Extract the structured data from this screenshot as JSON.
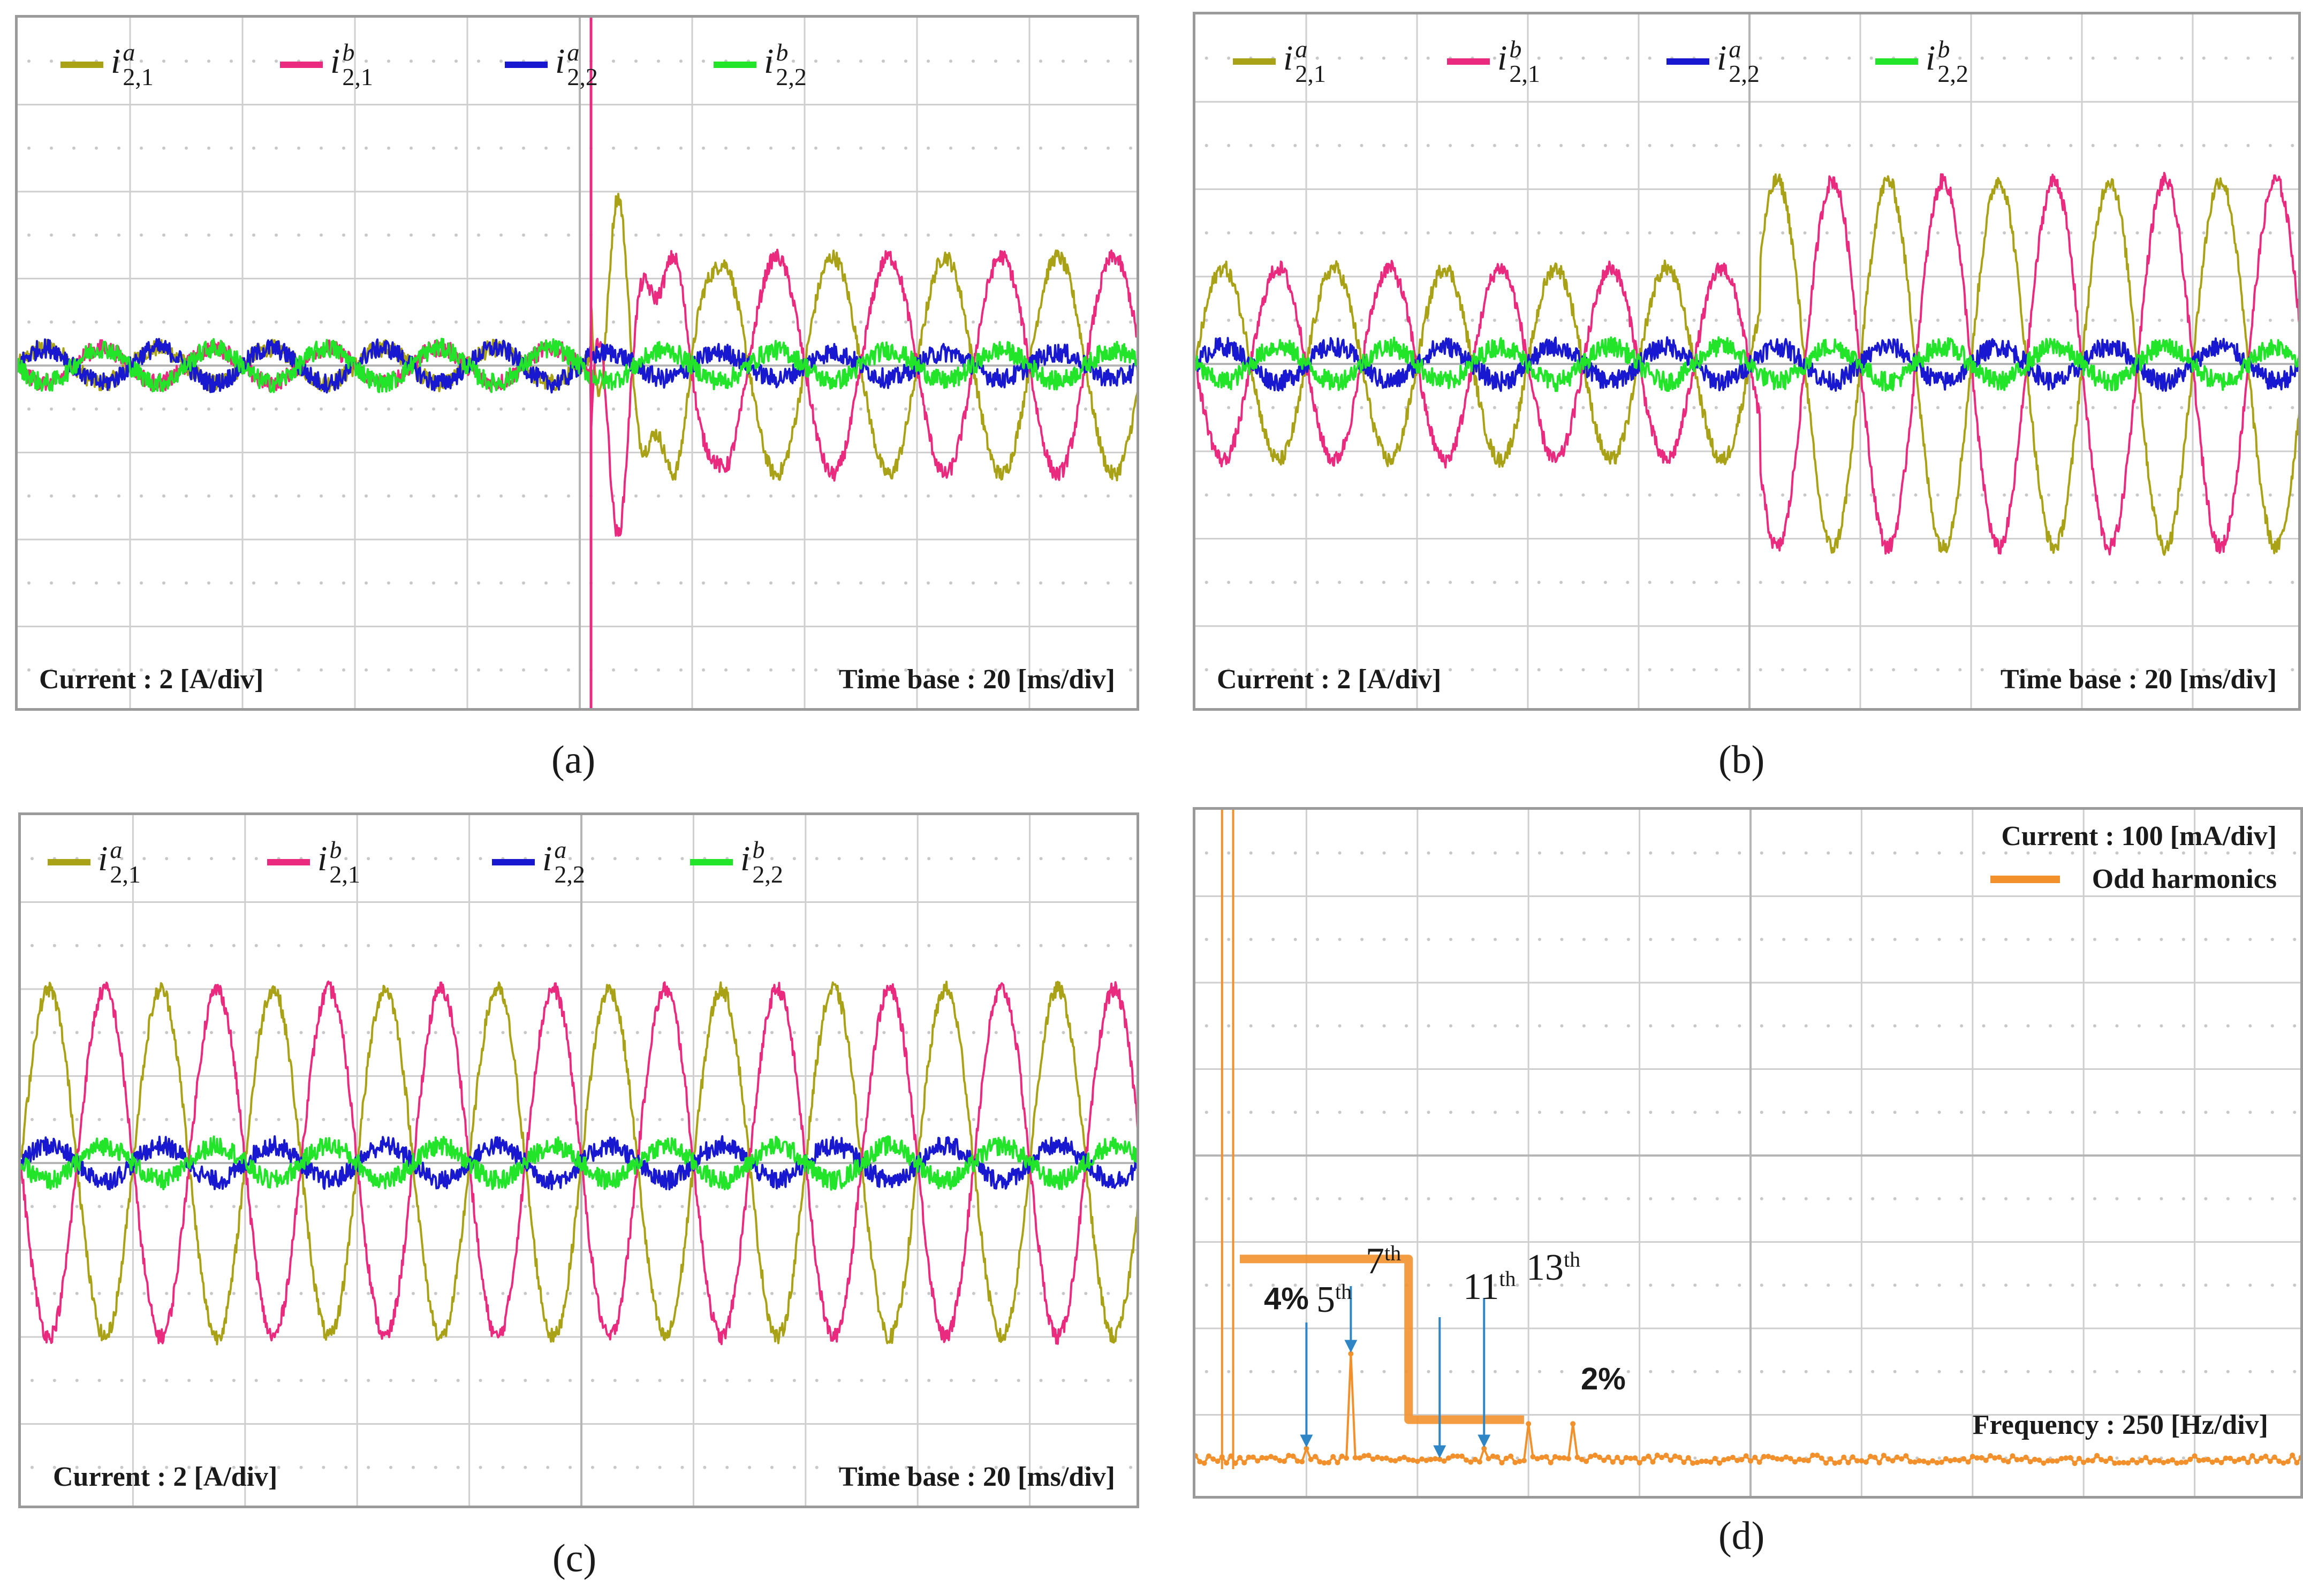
{
  "colors": {
    "i21a": "#aaa216",
    "i21b": "#ea2a7e",
    "i22a": "#1818d0",
    "i22b": "#22e52a",
    "harmonic": "#f2912c",
    "annotation_arrow": "#2e86c6",
    "grid": "#cfcfcf"
  },
  "legend": [
    {
      "key": "i21a",
      "base": "i",
      "sub": "2,1",
      "sup": "a"
    },
    {
      "key": "i21b",
      "base": "i",
      "sub": "2,1",
      "sup": "b"
    },
    {
      "key": "i22a",
      "base": "i",
      "sub": "2,2",
      "sup": "a"
    },
    {
      "key": "i22b",
      "base": "i",
      "sub": "2,2",
      "sup": "b"
    }
  ],
  "panels": {
    "a": {
      "caption": "(a)",
      "scale_y": "Current : 2 [A/div]",
      "scale_x": "Time base : 20 [ms/div]"
    },
    "b": {
      "caption": "(b)",
      "scale_y": "Current : 2 [A/div]",
      "scale_x": "Time base : 20 [ms/div]"
    },
    "c": {
      "caption": "(c)",
      "scale_y": "Current : 2 [A/div]",
      "scale_x": "Time base : 20 [ms/div]"
    },
    "d": {
      "caption": "(d)",
      "scale_y": "Current : 100 [mA/div]",
      "scale_x": "Frequency : 250 [Hz/div]",
      "legend_label": "Odd harmonics"
    }
  },
  "chart_data": [
    {
      "id": "a",
      "type": "line",
      "x_unit": "ms",
      "x_per_div": 20,
      "x_divs": 10,
      "y_unit": "A",
      "y_per_div": 2,
      "y_divs": 8,
      "ylim": [
        -8,
        8
      ],
      "event_time_ms": 102,
      "series": [
        {
          "name": "i2,1^a",
          "key": "i21a",
          "amp_before": 0.4,
          "amp_after": 2.5,
          "phase": 0
        },
        {
          "name": "i2,1^b",
          "key": "i21b",
          "amp_before": 0.4,
          "amp_after": 2.5,
          "phase": 180
        },
        {
          "name": "i2,2^a",
          "key": "i22a",
          "amp_before": 0.4,
          "amp_after": 0.3,
          "phase": 0
        },
        {
          "name": "i2,2^b",
          "key": "i22b",
          "amp_before": 0.4,
          "amp_after": 0.35,
          "phase": 180
        }
      ]
    },
    {
      "id": "b",
      "type": "line",
      "x_unit": "ms",
      "x_per_div": 20,
      "x_divs": 10,
      "y_unit": "A",
      "y_per_div": 2,
      "y_divs": 8,
      "ylim": [
        -8,
        8
      ],
      "event_time_ms": 102,
      "series": [
        {
          "name": "i2,1^a",
          "key": "i21a",
          "amp_before": 2.2,
          "amp_after": 4.2,
          "phase": 0
        },
        {
          "name": "i2,1^b",
          "key": "i21b",
          "amp_before": 2.2,
          "amp_after": 4.2,
          "phase": 180
        },
        {
          "name": "i2,2^a",
          "key": "i22a",
          "amp_before": 0.4,
          "amp_after": 0.4,
          "phase": 0
        },
        {
          "name": "i2,2^b",
          "key": "i22b",
          "amp_before": 0.4,
          "amp_after": 0.4,
          "phase": 180
        }
      ]
    },
    {
      "id": "c",
      "type": "line",
      "x_unit": "ms",
      "x_per_div": 20,
      "x_divs": 10,
      "y_unit": "A",
      "y_per_div": 2,
      "y_divs": 8,
      "ylim": [
        -8,
        8
      ],
      "event_time_ms": null,
      "series": [
        {
          "name": "i2,1^a",
          "key": "i21a",
          "amp_before": 4.0,
          "amp_after": 4.0,
          "phase": 0
        },
        {
          "name": "i2,1^b",
          "key": "i21b",
          "amp_before": 4.0,
          "amp_after": 4.0,
          "phase": 180
        },
        {
          "name": "i2,2^a",
          "key": "i22a",
          "amp_before": 0.4,
          "amp_after": 0.4,
          "phase": 0
        },
        {
          "name": "i2,2^b",
          "key": "i22b",
          "amp_before": 0.4,
          "amp_after": 0.4,
          "phase": 180
        }
      ]
    },
    {
      "id": "d",
      "type": "line",
      "x_unit": "Hz",
      "x_per_div": 250,
      "x_divs": 10,
      "y_unit": "mA",
      "y_per_div": 100,
      "y_divs": 8,
      "ylim": [
        0,
        800
      ],
      "series": [
        {
          "name": "Odd harmonics",
          "key": "harmonic"
        }
      ],
      "harmonics": [
        {
          "order": 5,
          "label": "5",
          "suffix": "th",
          "freq_hz": 250,
          "value_ma": 25
        },
        {
          "order": 7,
          "label": "7",
          "suffix": "th",
          "freq_hz": 350,
          "value_ma": 140
        },
        {
          "order": 11,
          "label": "11",
          "suffix": "th",
          "freq_hz": 550,
          "value_ma": 12
        },
        {
          "order": 13,
          "label": "13",
          "suffix": "th",
          "freq_hz": 650,
          "value_ma": 25
        }
      ],
      "extra_peaks": [
        {
          "freq_hz": 60,
          "value_ma": 800
        },
        {
          "freq_hz": 85,
          "value_ma": 800
        },
        {
          "freq_hz": 750,
          "value_ma": 55
        },
        {
          "freq_hz": 850,
          "value_ma": 55
        }
      ],
      "limit_line": [
        {
          "label": "4%",
          "from_hz": 100,
          "to_hz": 480,
          "value_ma": 255
        },
        {
          "label": "2%",
          "from_hz": 480,
          "to_hz": 740,
          "value_ma": 60
        }
      ]
    }
  ]
}
